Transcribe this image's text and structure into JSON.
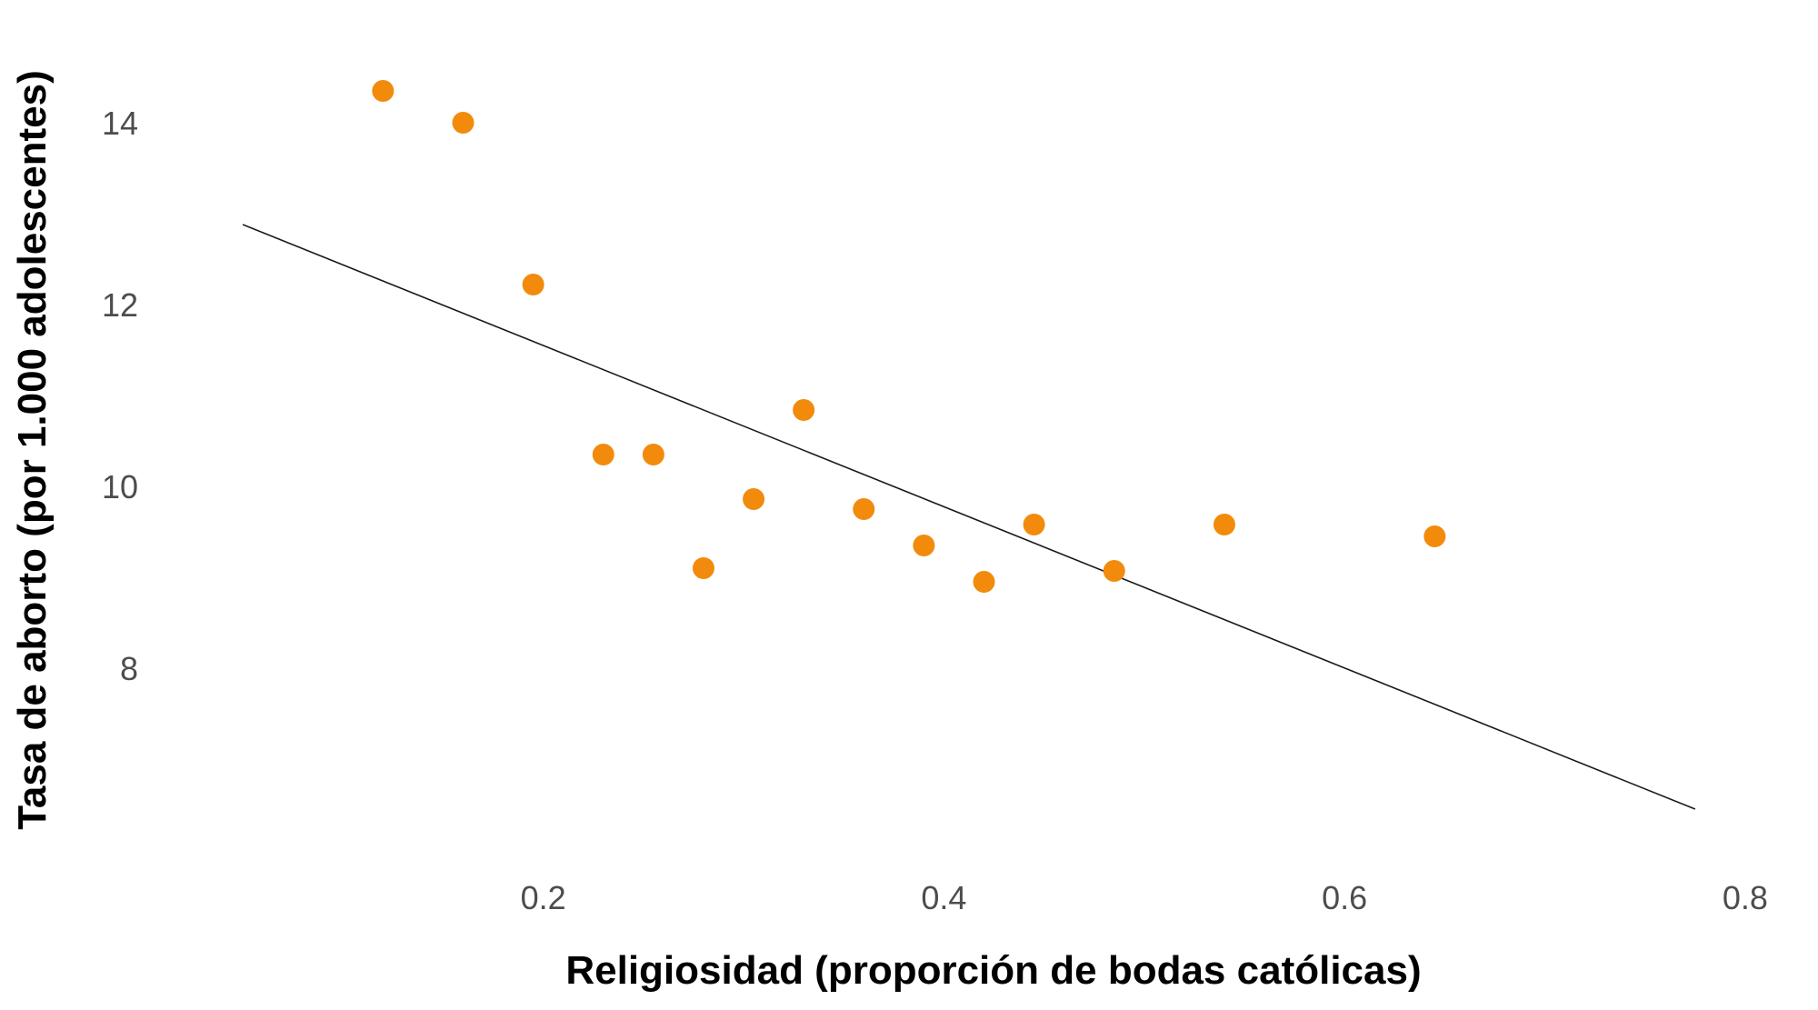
{
  "chart_data": {
    "type": "scatter",
    "xlabel": "Religiosidad (proporción de bodas católicas)",
    "ylabel": "Tasa de aborto (por 1.000 adolescentes)",
    "xlim": [
      0.03,
      0.82
    ],
    "ylim": [
      6.0,
      14.9
    ],
    "x_ticks": [
      0.2,
      0.4,
      0.6,
      0.8
    ],
    "x_tick_labels": [
      "0.2",
      "0.4",
      "0.6",
      "0.8"
    ],
    "y_ticks": [
      8,
      10,
      12,
      14
    ],
    "y_tick_labels": [
      "8",
      "10",
      "12",
      "14"
    ],
    "grid": false,
    "point_color": "#f28b0c",
    "line_color": "#1a1a1a",
    "points": [
      {
        "x": 0.12,
        "y": 14.35
      },
      {
        "x": 0.16,
        "y": 14.0
      },
      {
        "x": 0.195,
        "y": 12.22
      },
      {
        "x": 0.23,
        "y": 10.35
      },
      {
        "x": 0.255,
        "y": 10.35
      },
      {
        "x": 0.28,
        "y": 9.1
      },
      {
        "x": 0.305,
        "y": 9.86
      },
      {
        "x": 0.33,
        "y": 10.84
      },
      {
        "x": 0.36,
        "y": 9.75
      },
      {
        "x": 0.39,
        "y": 9.35
      },
      {
        "x": 0.42,
        "y": 8.95
      },
      {
        "x": 0.445,
        "y": 9.58
      },
      {
        "x": 0.485,
        "y": 9.07
      },
      {
        "x": 0.54,
        "y": 9.58
      },
      {
        "x": 0.645,
        "y": 9.45
      }
    ],
    "trend_line": {
      "x": [
        0.05,
        0.775
      ],
      "y": [
        12.88,
        6.45
      ]
    }
  }
}
